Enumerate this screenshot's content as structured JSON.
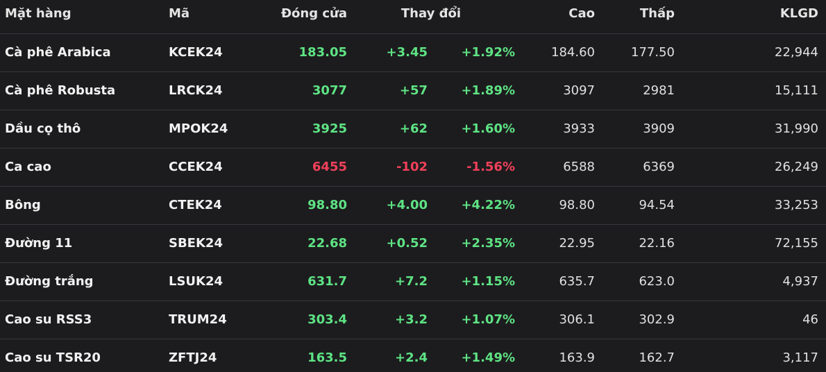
{
  "table": {
    "headers": [
      "Mặt hàng",
      "Mã",
      "Đóng cửa",
      "Thay đổi",
      "Cao",
      "Thấp",
      "KLGD"
    ],
    "rows": [
      {
        "cells": [
          "Cà phê Arabica",
          "KCEK24",
          "183.05",
          "+3.45",
          "+1.92%",
          "184.60",
          "177.50",
          "22,944"
        ],
        "color": "#5ee384"
      },
      {
        "cells": [
          "Cà phê Robusta",
          "LRCK24",
          "3077",
          "+57",
          "+1.89%",
          "3097",
          "2981",
          "15,111"
        ],
        "color": "#5ee384"
      },
      {
        "cells": [
          "Dầu cọ thô",
          "MPOK24",
          "3925",
          "+62",
          "+1.60%",
          "3933",
          "3909",
          "31,990"
        ],
        "color": "#5ee384"
      },
      {
        "cells": [
          "Ca cao",
          "CCEK24",
          "6455",
          "-102",
          "-1.56%",
          "6588",
          "6369",
          "26,249"
        ],
        "color": "#f0405a"
      },
      {
        "cells": [
          "Bông",
          "CTEK24",
          "98.80",
          "+4.00",
          "+4.22%",
          "98.80",
          "94.54",
          "33,253"
        ],
        "color": "#5ee384"
      },
      {
        "cells": [
          "Đường 11",
          "SBEK24",
          "22.68",
          "+0.52",
          "+2.35%",
          "22.95",
          "22.16",
          "72,155"
        ],
        "color": "#5ee384"
      },
      {
        "cells": [
          "Đường trắng",
          "LSUK24",
          "631.7",
          "+7.2",
          "+1.15%",
          "635.7",
          "623.0",
          "4,937"
        ],
        "color": "#5ee384"
      },
      {
        "cells": [
          "Cao su RSS3",
          "TRUM24",
          "303.4",
          "+3.2",
          "+1.07%",
          "306.1",
          "302.9",
          "46"
        ],
        "color": "#5ee384"
      },
      {
        "cells": [
          "Cao su TSR20",
          "ZFTJ24",
          "163.5",
          "+2.4",
          "+1.49%",
          "163.9",
          "162.7",
          "3,117"
        ],
        "color": "#5ee384"
      }
    ]
  }
}
